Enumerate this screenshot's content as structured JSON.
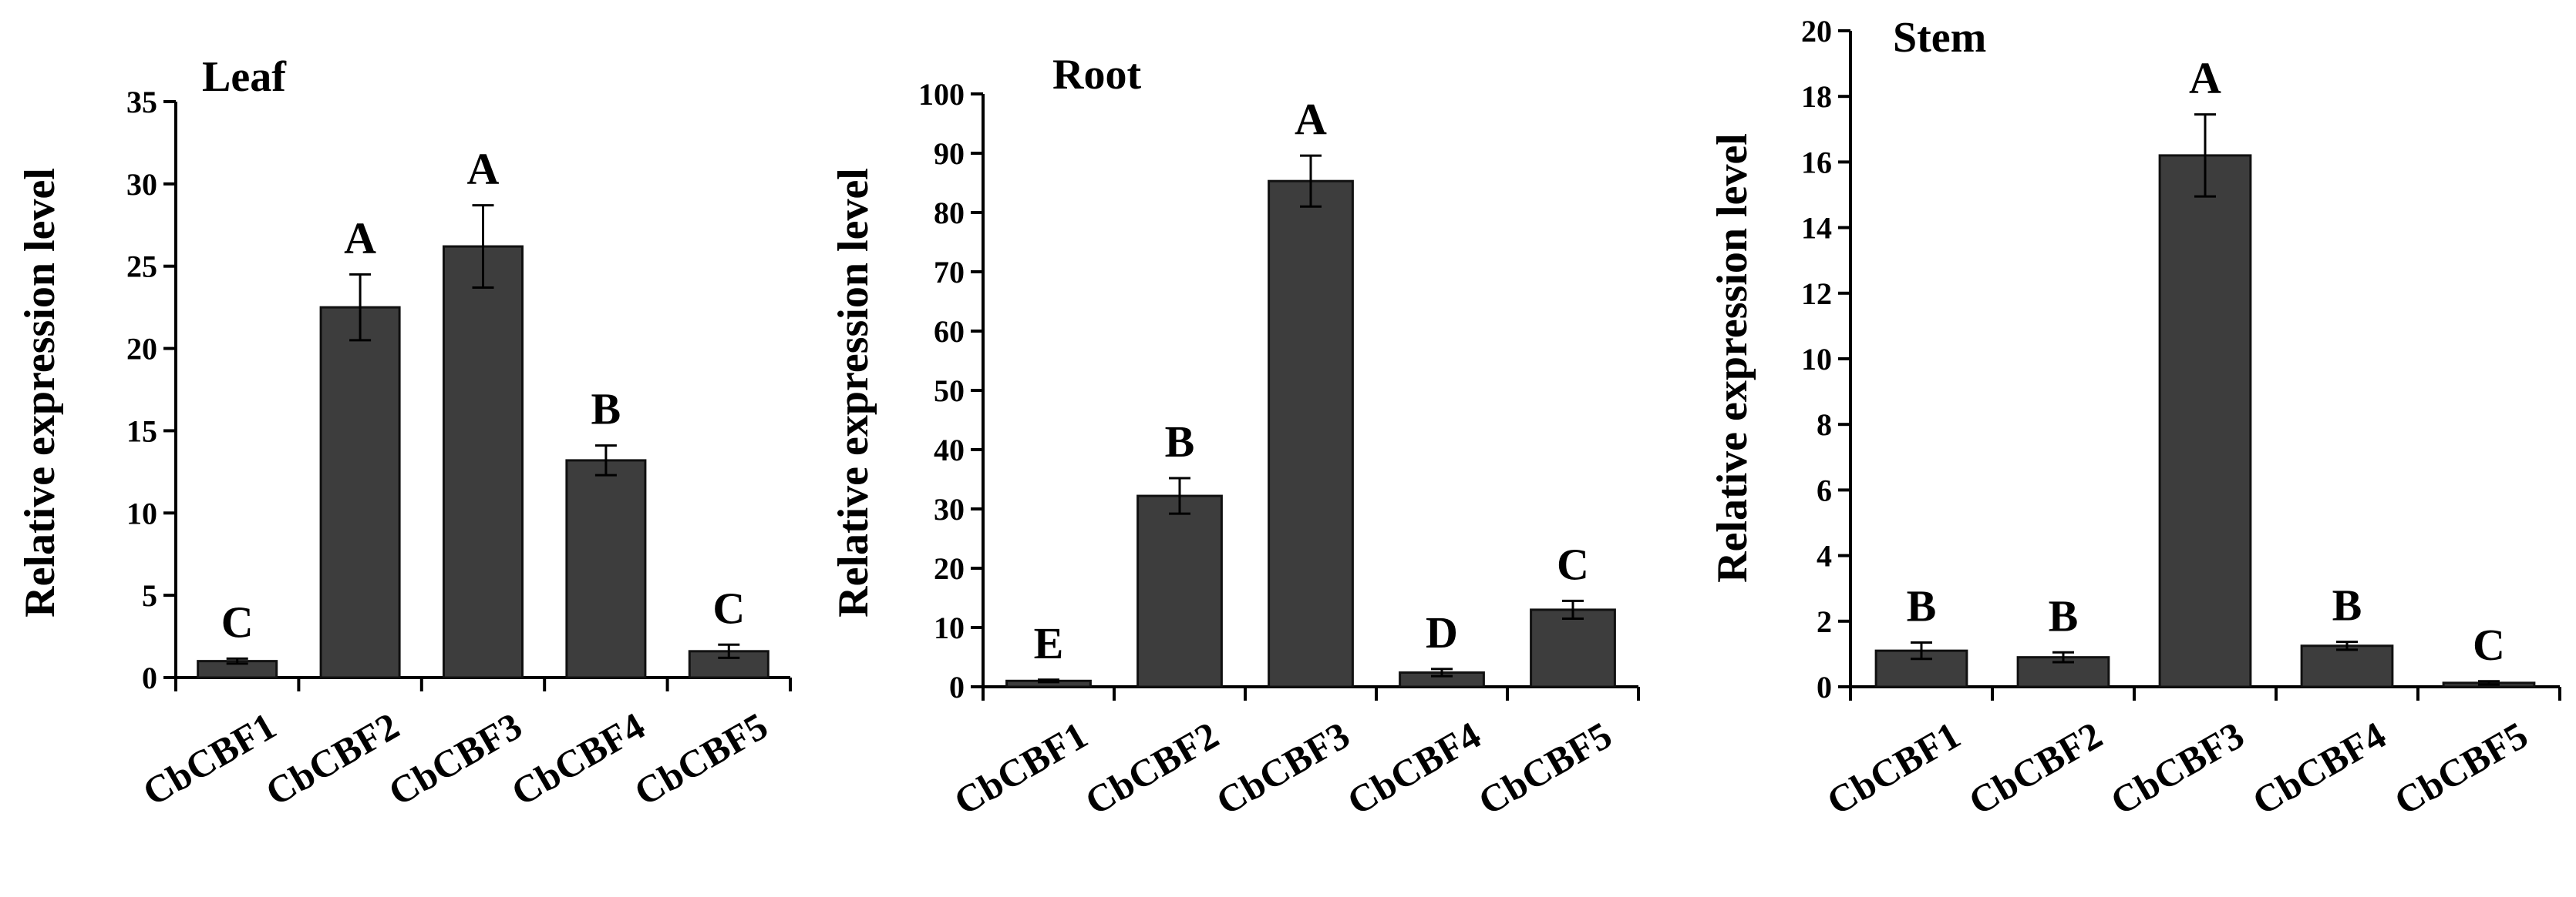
{
  "chart_data": [
    {
      "type": "bar",
      "title": "Leaf",
      "ylabel": "Relative expression level",
      "xlabel": "",
      "ylim": [
        0,
        35
      ],
      "yticks": [
        0,
        5,
        10,
        15,
        20,
        25,
        30,
        35
      ],
      "categories": [
        "CbCBF1",
        "CbCBF2",
        "CbCBF3",
        "CbCBF4",
        "CbCBF5"
      ],
      "values": [
        1.0,
        22.5,
        26.2,
        13.2,
        1.6
      ],
      "errors": [
        0.15,
        2.0,
        2.5,
        0.9,
        0.4
      ],
      "significance": [
        "C",
        "A",
        "A",
        "B",
        "C"
      ],
      "bar_color": "#3d3d3d",
      "grid": false,
      "legend": "none"
    },
    {
      "type": "bar",
      "title": "Root",
      "ylabel": "Relative expression level",
      "xlabel": "",
      "ylim": [
        0,
        100
      ],
      "yticks": [
        0,
        10,
        20,
        30,
        40,
        50,
        60,
        70,
        80,
        90,
        100
      ],
      "categories": [
        "CbCBF1",
        "CbCBF2",
        "CbCBF3",
        "CbCBF4",
        "CbCBF5"
      ],
      "values": [
        1.0,
        32.2,
        85.3,
        2.4,
        13.0
      ],
      "errors": [
        0.2,
        3.0,
        4.3,
        0.6,
        1.5
      ],
      "significance": [
        "E",
        "B",
        "A",
        "D",
        "C"
      ],
      "bar_color": "#3d3d3d",
      "grid": false,
      "legend": "none"
    },
    {
      "type": "bar",
      "title": "Stem",
      "ylabel": "Relative expression level",
      "xlabel": "",
      "ylim": [
        0,
        20
      ],
      "yticks": [
        0,
        2,
        4,
        6,
        8,
        10,
        12,
        14,
        16,
        18,
        20
      ],
      "categories": [
        "CbCBF1",
        "CbCBF2",
        "CbCBF3",
        "CbCBF4",
        "CbCBF5"
      ],
      "values": [
        1.1,
        0.9,
        16.2,
        1.25,
        0.12
      ],
      "errors": [
        0.25,
        0.15,
        1.25,
        0.12,
        0.05
      ],
      "significance": [
        "B",
        "B",
        "A",
        "B",
        "C"
      ],
      "bar_color": "#3d3d3d",
      "grid": false,
      "legend": "none"
    }
  ]
}
